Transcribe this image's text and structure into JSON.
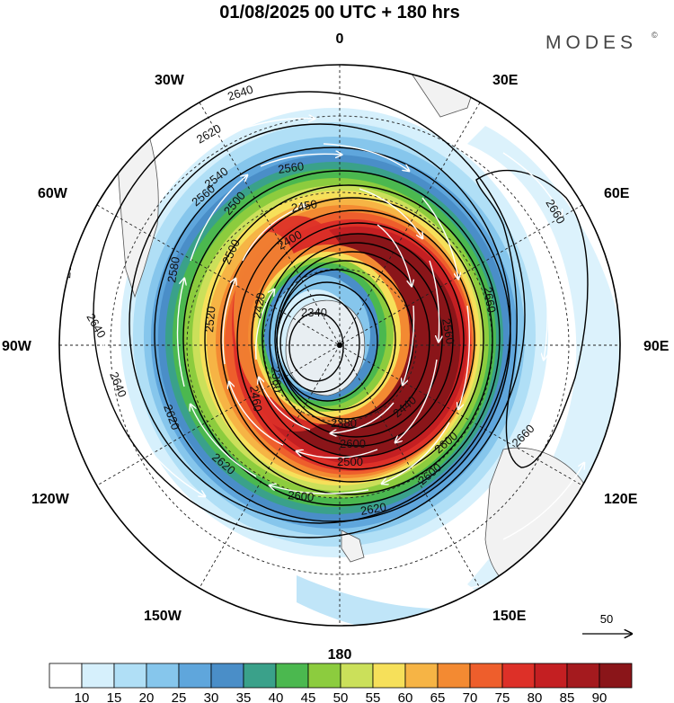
{
  "title": "01/08/2025  00 UTC  + 180 hrs",
  "brand": "MODES",
  "brand_mark": "©",
  "map": {
    "projection": "south-polar-stereographic",
    "lon_labels": {
      "top": "0",
      "bottom": "180",
      "left": "90W",
      "right": "90E",
      "upper_left": "30W",
      "upper_right": "30E",
      "mid_left": "60W",
      "mid_right": "60E",
      "lower_left": "120W",
      "lower_right": "120E",
      "bottom_left": "150W",
      "bottom_right": "150E"
    },
    "contour_labels": [
      "2640",
      "2640",
      "2640",
      "2640",
      "2640",
      "2620",
      "2620",
      "2620",
      "2600",
      "2620",
      "2600",
      "2580",
      "2560",
      "2560",
      "2540",
      "2500",
      "2500",
      "2450",
      "2400",
      "2420",
      "2520",
      "2460",
      "2340",
      "2360",
      "2380",
      "2440",
      "2500",
      "2600",
      "2660",
      "2660",
      "2560",
      "2600",
      "2660"
    ],
    "vector_reference": {
      "value": "50"
    }
  },
  "colors": {
    "levels": [
      "10",
      "15",
      "20",
      "25",
      "30",
      "35",
      "40",
      "45",
      "50",
      "55",
      "60",
      "65",
      "70",
      "75",
      "80",
      "85",
      "90"
    ],
    "swatches": [
      "#ffffff",
      "#d6f0fc",
      "#b0dff6",
      "#86c6ec",
      "#5fa6dc",
      "#4a8ec8",
      "#3aa18a",
      "#4bb84f",
      "#8ccc3e",
      "#cbe05a",
      "#f6e05a",
      "#f6b445",
      "#f38a32",
      "#ee5e2c",
      "#dd3028",
      "#c41f22",
      "#a41a1e",
      "#8a1519"
    ]
  }
}
